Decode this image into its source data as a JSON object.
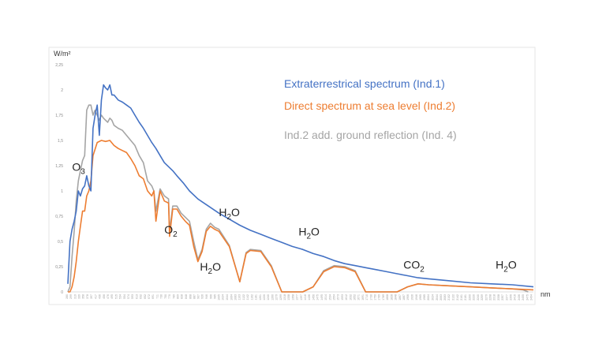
{
  "chart_data": {
    "type": "line",
    "title": "",
    "ylabel": "W/m²",
    "xlabel": "nm",
    "xlim": [
      280,
      2500
    ],
    "ylim": [
      0,
      2.25
    ],
    "y_ticks": [
      "0",
      "0,25",
      "0,5",
      "0,75",
      "1",
      "1,25",
      "1,5",
      "1,75",
      "2",
      "2,25"
    ],
    "x_ticks": [
      280,
      299,
      319,
      339,
      358,
      378,
      397,
      417,
      436,
      456,
      476,
      495,
      515,
      534,
      554,
      574,
      593,
      613,
      632,
      652,
      672,
      691,
      711,
      730,
      750,
      770,
      789,
      809,
      828,
      848,
      868,
      887,
      907,
      926,
      946,
      966,
      985,
      1005,
      1024,
      1044,
      1064,
      1083,
      1103,
      1122,
      1142,
      1162,
      1181,
      1201,
      1220,
      1240,
      1260,
      1279,
      1299,
      1318,
      1338,
      1358,
      1377,
      1397,
      1416,
      1436,
      1456,
      1475,
      1495,
      1514,
      1534,
      1554,
      1573,
      1593,
      1612,
      1632,
      1652,
      1671,
      1691,
      1710,
      1730,
      1750,
      1769,
      1789,
      1808,
      1828,
      1848,
      1867,
      1887,
      1906,
      1926,
      1946,
      1965,
      1985,
      2004,
      2024,
      2044,
      2063,
      2083,
      2102,
      2122,
      2142,
      2161,
      2181,
      2200,
      2220,
      2240,
      2259,
      2279,
      2298,
      2318,
      2338,
      2357,
      2377,
      2396,
      2416,
      2436,
      2455,
      2475,
      2494
    ],
    "grid": false,
    "legend_position": "top-right",
    "series": [
      {
        "name": "Extraterrestrical spectrum (Ind.1)",
        "color": "#4472c4",
        "x": [
          280,
          290,
          300,
          310,
          320,
          330,
          340,
          350,
          360,
          370,
          380,
          390,
          400,
          410,
          420,
          430,
          440,
          450,
          460,
          470,
          480,
          490,
          500,
          520,
          540,
          560,
          580,
          600,
          620,
          640,
          660,
          680,
          700,
          720,
          740,
          760,
          780,
          800,
          830,
          860,
          900,
          950,
          1000,
          1050,
          1100,
          1150,
          1200,
          1250,
          1300,
          1350,
          1400,
          1450,
          1500,
          1550,
          1600,
          1650,
          1700,
          1750,
          1800,
          1850,
          1900,
          1950,
          2000,
          2100,
          2200,
          2300,
          2400,
          2500
        ],
        "y": [
          0.08,
          0.5,
          0.62,
          0.7,
          0.8,
          1.0,
          0.95,
          1.02,
          1.05,
          1.15,
          1.05,
          1.0,
          1.62,
          1.75,
          1.85,
          1.55,
          1.9,
          2.05,
          2.02,
          2.0,
          2.05,
          1.95,
          1.95,
          1.9,
          1.88,
          1.85,
          1.82,
          1.75,
          1.68,
          1.62,
          1.55,
          1.48,
          1.42,
          1.35,
          1.28,
          1.24,
          1.2,
          1.15,
          1.08,
          1.0,
          0.92,
          0.85,
          0.78,
          0.72,
          0.66,
          0.61,
          0.57,
          0.53,
          0.49,
          0.45,
          0.42,
          0.38,
          0.35,
          0.31,
          0.28,
          0.26,
          0.24,
          0.22,
          0.2,
          0.18,
          0.16,
          0.14,
          0.13,
          0.11,
          0.09,
          0.08,
          0.07,
          0.05
        ]
      },
      {
        "name": "Direct spectrum at sea level (Ind.2)",
        "color": "#ed7d31",
        "x": [
          280,
          290,
          300,
          310,
          320,
          330,
          340,
          350,
          360,
          370,
          380,
          390,
          400,
          420,
          440,
          460,
          480,
          500,
          520,
          540,
          560,
          580,
          600,
          620,
          640,
          660,
          680,
          690,
          700,
          720,
          740,
          760,
          765,
          780,
          800,
          820,
          840,
          860,
          880,
          900,
          920,
          940,
          960,
          980,
          1000,
          1050,
          1100,
          1130,
          1150,
          1200,
          1250,
          1300,
          1350,
          1400,
          1450,
          1500,
          1550,
          1600,
          1650,
          1700,
          1750,
          1800,
          1850,
          1900,
          1950,
          2000,
          2100,
          2200,
          2300,
          2400,
          2500
        ],
        "y": [
          0.0,
          0.0,
          0.05,
          0.15,
          0.3,
          0.5,
          0.65,
          0.8,
          0.8,
          0.95,
          1.0,
          1.1,
          1.35,
          1.48,
          1.5,
          1.49,
          1.5,
          1.45,
          1.42,
          1.4,
          1.38,
          1.32,
          1.25,
          1.15,
          1.12,
          1.0,
          0.95,
          1.0,
          0.7,
          1.0,
          0.9,
          0.88,
          0.55,
          0.82,
          0.82,
          0.75,
          0.7,
          0.66,
          0.45,
          0.3,
          0.4,
          0.6,
          0.65,
          0.62,
          0.6,
          0.45,
          0.1,
          0.38,
          0.41,
          0.4,
          0.25,
          0.0,
          0.0,
          0.0,
          0.05,
          0.2,
          0.25,
          0.24,
          0.2,
          0.0,
          0.0,
          0.0,
          0.0,
          0.05,
          0.08,
          0.07,
          0.06,
          0.05,
          0.04,
          0.03,
          0.02
        ]
      },
      {
        "name": "Ind.2 add. ground reflection (Ind. 4)",
        "color": "#a5a5a5",
        "x": [
          280,
          290,
          300,
          310,
          320,
          330,
          340,
          350,
          360,
          370,
          380,
          390,
          400,
          410,
          420,
          430,
          440,
          450,
          460,
          470,
          480,
          490,
          500,
          520,
          540,
          560,
          580,
          600,
          620,
          640,
          660,
          680,
          690,
          700,
          720,
          740,
          760,
          765,
          780,
          800,
          820,
          840,
          860,
          880,
          900,
          920,
          940,
          960,
          980,
          1000,
          1050,
          1100,
          1130,
          1150,
          1200,
          1250,
          1300,
          1350,
          1400,
          1450,
          1500,
          1550,
          1600,
          1650,
          1700,
          1750,
          1800,
          1850,
          1900,
          1950,
          2000,
          2100,
          2200,
          2300,
          2400,
          2450,
          2475
        ],
        "y": [
          0.0,
          0.05,
          0.35,
          0.6,
          0.9,
          1.1,
          1.2,
          1.3,
          1.35,
          1.8,
          1.85,
          1.85,
          1.75,
          1.8,
          1.75,
          1.7,
          1.75,
          1.72,
          1.7,
          1.68,
          1.72,
          1.7,
          1.65,
          1.62,
          1.6,
          1.55,
          1.5,
          1.45,
          1.35,
          1.28,
          1.1,
          1.05,
          1.0,
          0.8,
          1.02,
          0.95,
          0.92,
          0.6,
          0.85,
          0.85,
          0.78,
          0.74,
          0.7,
          0.5,
          0.32,
          0.42,
          0.62,
          0.68,
          0.64,
          0.62,
          0.46,
          0.1,
          0.39,
          0.42,
          0.41,
          0.26,
          0.0,
          0.0,
          0.0,
          0.05,
          0.21,
          0.26,
          0.25,
          0.21,
          0.0,
          0.0,
          0.0,
          0.0,
          0.05,
          0.08,
          0.07,
          0.06,
          0.05,
          0.04,
          0.03,
          0.02,
          0.0
        ]
      }
    ],
    "annotations": [
      {
        "base": "O",
        "sub": "3",
        "after": "",
        "x": 300,
        "y": 1.2
      },
      {
        "base": "O",
        "sub": "2",
        "after": "",
        "x": 740,
        "y": 0.58
      },
      {
        "base": "H",
        "sub": "2",
        "after": "O",
        "x": 910,
        "y": 0.21
      },
      {
        "base": "H",
        "sub": "2",
        "after": "O",
        "x": 1000,
        "y": 0.75
      },
      {
        "base": "H",
        "sub": "2",
        "after": "O",
        "x": 1380,
        "y": 0.56
      },
      {
        "base": "CO",
        "sub": "2",
        "after": "",
        "x": 1880,
        "y": 0.23
      },
      {
        "base": "H",
        "sub": "2",
        "after": "O",
        "x": 2320,
        "y": 0.23
      }
    ]
  }
}
